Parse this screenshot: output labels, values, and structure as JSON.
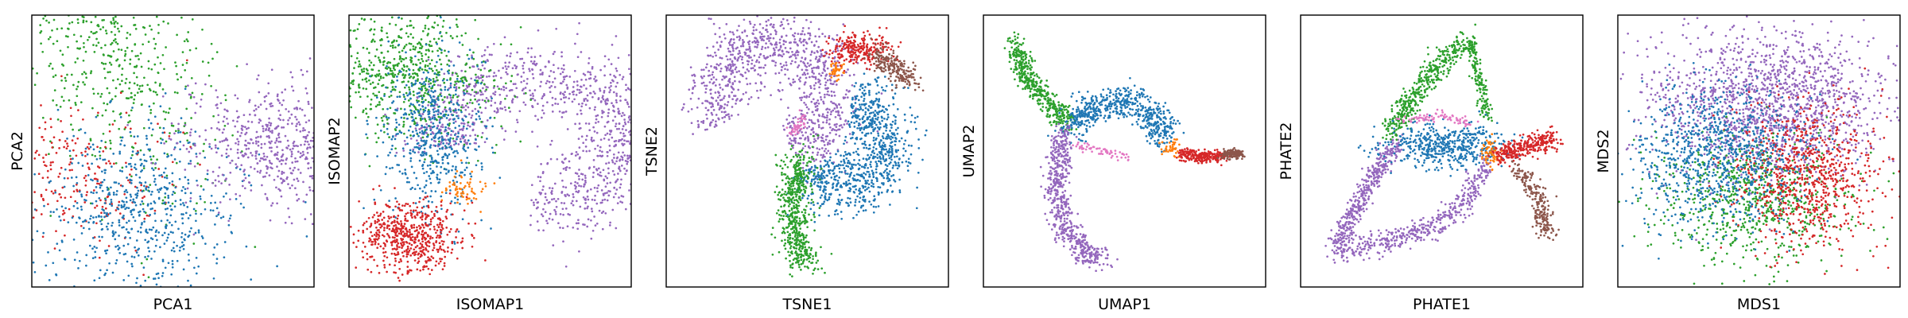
{
  "chart_data": [
    {
      "type": "scatter",
      "xlabel": "PCA1",
      "ylabel": "PCA2",
      "grid": false,
      "series": [
        {
          "color": "#2ca02c",
          "clusters": [
            {
              "cx": -0.5,
              "cy": 0.85,
              "sx": 0.4,
              "sy": 0.6,
              "n": 650,
              "rho": -0.4
            }
          ]
        },
        {
          "color": "#d62728",
          "clusters": [
            {
              "cx": -0.9,
              "cy": -0.2,
              "sx": 0.45,
              "sy": 0.3,
              "n": 300
            }
          ]
        },
        {
          "color": "#1f77b4",
          "clusters": [
            {
              "cx": -0.25,
              "cy": -0.5,
              "sx": 0.4,
              "sy": 0.35,
              "n": 650
            }
          ]
        },
        {
          "color": "#9467bd",
          "clusters": [
            {
              "cx": 0.95,
              "cy": 0.05,
              "sx": 0.45,
              "sy": 0.25,
              "n": 750
            }
          ]
        }
      ]
    },
    {
      "type": "scatter",
      "xlabel": "ISOMAP1",
      "ylabel": "ISOMAP2",
      "grid": false,
      "series": [
        {
          "color": "#9467bd",
          "rings": [
            {
              "cx": 0.35,
              "cy": 0.1,
              "r": 0.75,
              "ry": 0.55,
              "thick": 0.17,
              "a0": -1.6,
              "a1": 3.3,
              "n": 1100
            }
          ]
        },
        {
          "color": "#2ca02c",
          "clusters": [
            {
              "cx": -0.7,
              "cy": 0.65,
              "sx": 0.35,
              "sy": 0.3,
              "n": 700,
              "rho": -0.2
            }
          ]
        },
        {
          "color": "#1f77b4",
          "clusters": [
            {
              "cx": -0.45,
              "cy": 0.15,
              "sx": 0.2,
              "sy": 0.35,
              "n": 550
            }
          ]
        },
        {
          "color": "#ff7f0e",
          "clusters": [
            {
              "cx": -0.22,
              "cy": -0.3,
              "sx": 0.08,
              "sy": 0.08,
              "n": 60
            }
          ]
        },
        {
          "color": "#d62728",
          "clusters": [
            {
              "cx": -0.65,
              "cy": -0.72,
              "sx": 0.2,
              "sy": 0.15,
              "n": 550
            }
          ]
        }
      ]
    },
    {
      "type": "scatter",
      "xlabel": "TSNE1",
      "ylabel": "TSNE2",
      "grid": false,
      "series": [
        {
          "color": "#9467bd",
          "rings": [
            {
              "cx": -0.28,
              "cy": 0.45,
              "r": 0.45,
              "ry": 0.5,
              "thick": 0.14,
              "a0": -1.2,
              "a1": 3.6,
              "n": 1000
            }
          ]
        },
        {
          "color": "#1f77b4",
          "rings": [
            {
              "cx": 0.3,
              "cy": 0.05,
              "r": 0.35,
              "ry": 0.38,
              "thick": 0.13,
              "a0": -2.6,
              "a1": 1.4,
              "n": 850
            }
          ]
        },
        {
          "color": "#2ca02c",
          "paths": [
            {
              "pts": [
                [
                  -0.05,
                  -0.05
                ],
                [
                  -0.12,
                  -0.4
                ],
                [
                  -0.1,
                  -0.7
                ],
                [
                  0.0,
                  -0.95
                ]
              ],
              "thick": 0.07,
              "n": 550
            }
          ]
        },
        {
          "color": "#d62728",
          "clusters": [
            {
              "cx": 0.4,
              "cy": 0.85,
              "sx": 0.13,
              "sy": 0.07,
              "n": 250
            }
          ]
        },
        {
          "color": "#8c564b",
          "paths": [
            {
              "pts": [
                [
                  0.55,
                  0.82
                ],
                [
                  0.7,
                  0.7
                ],
                [
                  0.85,
                  0.58
                ]
              ],
              "thick": 0.05,
              "n": 220
            }
          ]
        },
        {
          "color": "#ff7f0e",
          "clusters": [
            {
              "cx": 0.23,
              "cy": 0.68,
              "sx": 0.03,
              "sy": 0.04,
              "n": 40
            }
          ]
        },
        {
          "color": "#e377c2",
          "paths": [
            {
              "pts": [
                [
                  -0.02,
                  0.28
                ],
                [
                  -0.12,
                  0.15
                ]
              ],
              "thick": 0.02,
              "n": 50
            }
          ]
        }
      ]
    },
    {
      "type": "scatter",
      "xlabel": "UMAP1",
      "ylabel": "UMAP2",
      "grid": false,
      "series": [
        {
          "color": "#2ca02c",
          "paths": [
            {
              "pts": [
                [
                  -0.88,
                  0.9
                ],
                [
                  -0.8,
                  0.62
                ],
                [
                  -0.6,
                  0.4
                ],
                [
                  -0.45,
                  0.22
                ]
              ],
              "thick": 0.045,
              "n": 450
            }
          ]
        },
        {
          "color": "#1f77b4",
          "paths": [
            {
              "pts": [
                [
                  -0.45,
                  0.2
                ],
                [
                  -0.25,
                  0.38
                ],
                [
                  0.05,
                  0.42
                ],
                [
                  0.25,
                  0.28
                ],
                [
                  0.32,
                  0.1
                ]
              ],
              "thick": 0.07,
              "n": 600
            }
          ]
        },
        {
          "color": "#9467bd",
          "paths": [
            {
              "pts": [
                [
                  -0.5,
                  0.15
                ],
                [
                  -0.55,
                  -0.2
                ],
                [
                  -0.5,
                  -0.6
                ],
                [
                  -0.3,
                  -0.88
                ],
                [
                  -0.15,
                  -0.88
                ]
              ],
              "thick": 0.05,
              "n": 600
            }
          ]
        },
        {
          "color": "#e377c2",
          "paths": [
            {
              "pts": [
                [
                  -0.4,
                  0.05
                ],
                [
                  -0.15,
                  -0.02
                ],
                [
                  0.05,
                  -0.05
                ]
              ],
              "thick": 0.02,
              "n": 60
            }
          ]
        },
        {
          "color": "#ff7f0e",
          "clusters": [
            {
              "cx": 0.38,
              "cy": 0.02,
              "sx": 0.04,
              "sy": 0.04,
              "n": 40
            }
          ]
        },
        {
          "color": "#d62728",
          "paths": [
            {
              "pts": [
                [
                  0.45,
                  -0.03
                ],
                [
                  0.65,
                  -0.05
                ],
                [
                  0.8,
                  -0.04
                ]
              ],
              "thick": 0.025,
              "n": 250
            }
          ]
        },
        {
          "color": "#8c564b",
          "paths": [
            {
              "pts": [
                [
                  0.8,
                  -0.03
                ],
                [
                  0.95,
                  -0.02
                ]
              ],
              "thick": 0.02,
              "n": 120
            }
          ]
        }
      ]
    },
    {
      "type": "scatter",
      "xlabel": "PHATE1",
      "ylabel": "PHATE2",
      "grid": false,
      "series": [
        {
          "color": "#9467bd",
          "paths": [
            {
              "pts": [
                [
                  -0.35,
                  0.1
                ],
                [
                  -0.6,
                  -0.3
                ],
                [
                  -0.85,
                  -0.8
                ]
              ],
              "thick": 0.04,
              "n": 400
            },
            {
              "pts": [
                [
                  -0.85,
                  -0.85
                ],
                [
                  -0.4,
                  -0.75
                ],
                [
                  0.0,
                  -0.6
                ],
                [
                  0.2,
                  -0.4
                ],
                [
                  0.35,
                  -0.1
                ]
              ],
              "thick": 0.05,
              "n": 450
            }
          ]
        },
        {
          "color": "#2ca02c",
          "paths": [
            {
              "pts": [
                [
                  -0.4,
                  0.15
                ],
                [
                  -0.2,
                  0.5
                ],
                [
                  0.0,
                  0.75
                ],
                [
                  0.22,
                  0.93
                ]
              ],
              "thick": 0.05,
              "n": 450
            },
            {
              "pts": [
                [
                  0.22,
                  0.93
                ],
                [
                  0.3,
                  0.6
                ],
                [
                  0.38,
                  0.25
                ]
              ],
              "thick": 0.025,
              "n": 150
            }
          ]
        },
        {
          "color": "#1f77b4",
          "clusters": [
            {
              "cx": 0.02,
              "cy": 0.05,
              "sx": 0.25,
              "sy": 0.09,
              "n": 500
            }
          ]
        },
        {
          "color": "#e377c2",
          "paths": [
            {
              "pts": [
                [
                  -0.35,
                  0.25
                ],
                [
                  0.0,
                  0.3
                ],
                [
                  0.25,
                  0.22
                ]
              ],
              "thick": 0.02,
              "n": 80
            }
          ]
        },
        {
          "color": "#ff7f0e",
          "clusters": [
            {
              "cx": 0.4,
              "cy": -0.02,
              "sx": 0.04,
              "sy": 0.07,
              "n": 60
            }
          ]
        },
        {
          "color": "#d62728",
          "paths": [
            {
              "pts": [
                [
                  0.45,
                  -0.05
                ],
                [
                  0.7,
                  0.05
                ],
                [
                  0.92,
                  0.1
                ]
              ],
              "thick": 0.04,
              "n": 300
            }
          ]
        },
        {
          "color": "#8c564b",
          "paths": [
            {
              "pts": [
                [
                  0.6,
                  -0.15
                ],
                [
                  0.78,
                  -0.4
                ],
                [
                  0.85,
                  -0.72
                ]
              ],
              "thick": 0.04,
              "n": 220
            }
          ]
        }
      ]
    },
    {
      "type": "scatter",
      "xlabel": "MDS1",
      "ylabel": "MDS2",
      "grid": false,
      "series": [
        {
          "color": "#9467bd",
          "clusters": [
            {
              "cx": 0.1,
              "cy": 0.4,
              "sx": 0.5,
              "sy": 0.3,
              "n": 1500
            }
          ]
        },
        {
          "color": "#2ca02c",
          "clusters": [
            {
              "cx": -0.05,
              "cy": -0.4,
              "sx": 0.38,
              "sy": 0.26,
              "n": 700
            }
          ]
        },
        {
          "color": "#d62728",
          "clusters": [
            {
              "cx": 0.4,
              "cy": -0.2,
              "sx": 0.3,
              "sy": 0.3,
              "n": 800
            }
          ]
        },
        {
          "color": "#1f77b4",
          "clusters": [
            {
              "cx": -0.35,
              "cy": -0.05,
              "sx": 0.35,
              "sy": 0.3,
              "n": 900
            }
          ]
        }
      ]
    }
  ]
}
